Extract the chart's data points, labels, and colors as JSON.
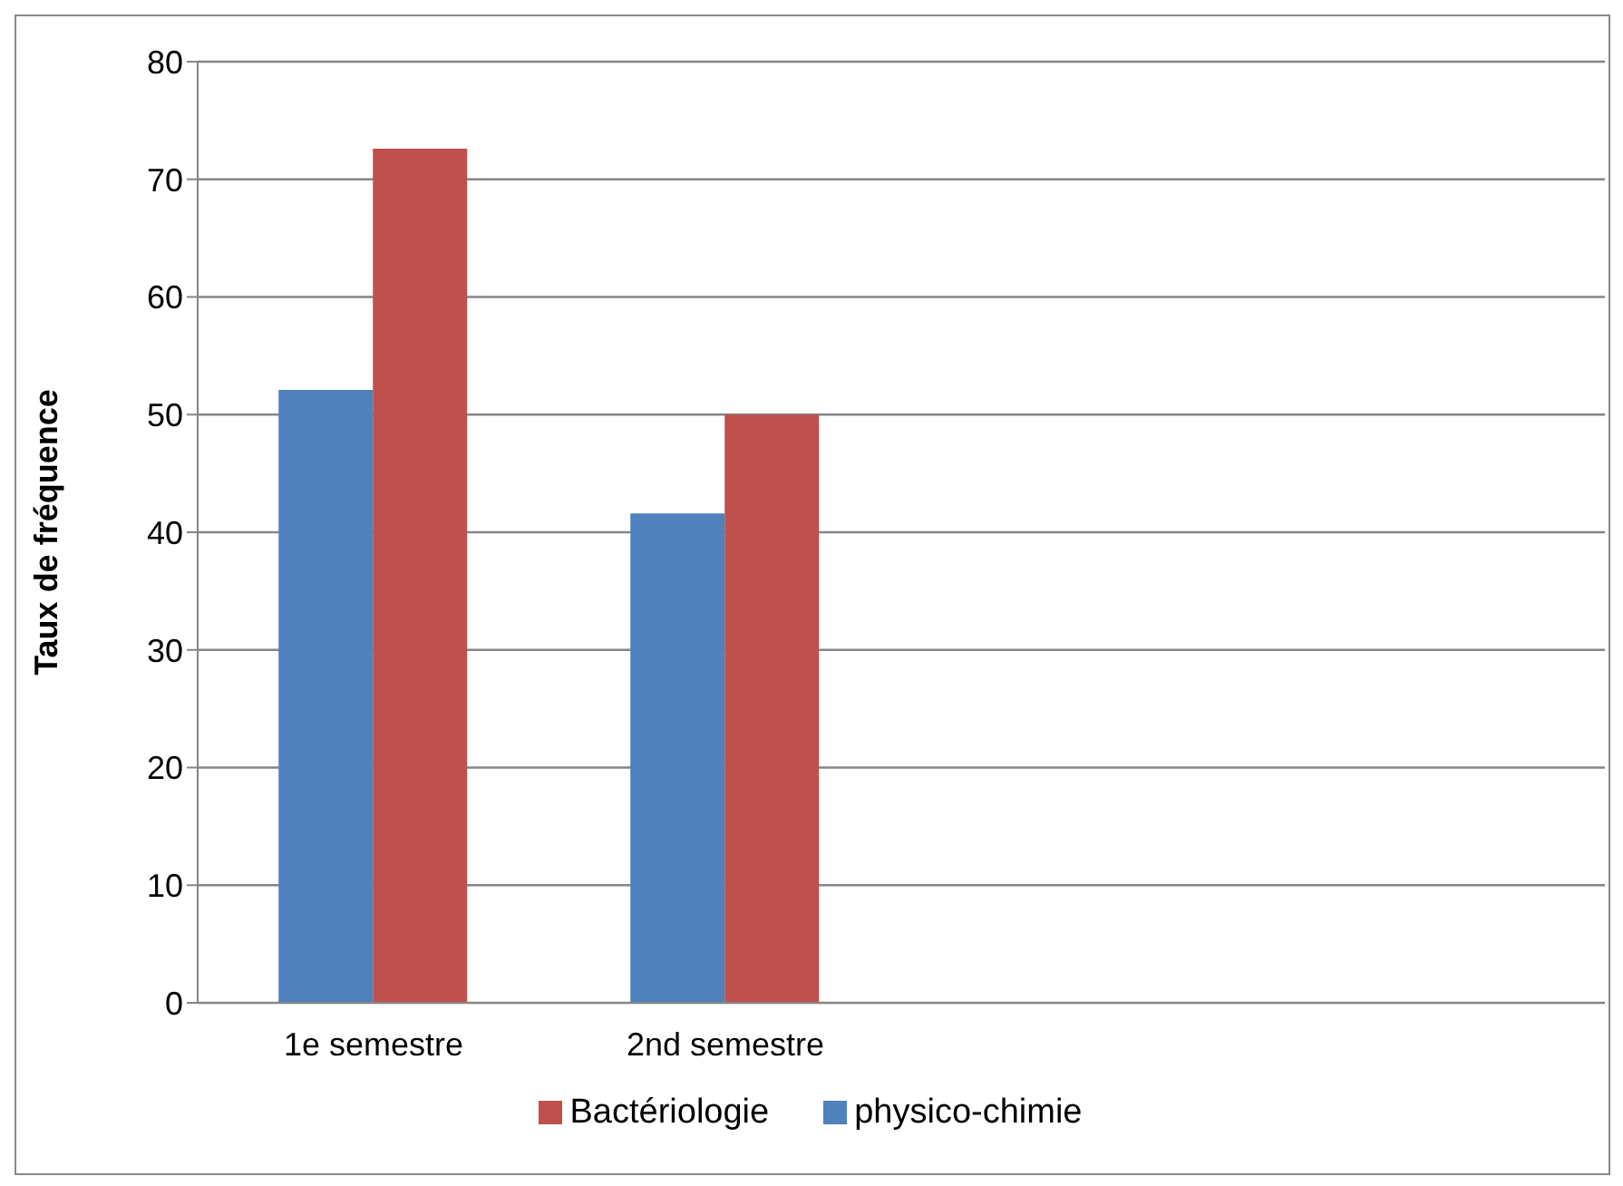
{
  "chart_data": {
    "type": "bar",
    "ylabel": "Taux de fréquence",
    "categories": [
      "1e semestre",
      "2nd semestre",
      null,
      null
    ],
    "series": [
      {
        "name": "physico-chimie",
        "color": "#4f81bd",
        "values": [
          52.1,
          41.6,
          null,
          null
        ]
      },
      {
        "name": "Bactériologie",
        "color": "#c0504d",
        "values": [
          72.6,
          50,
          null,
          null
        ]
      }
    ],
    "ylim": [
      0,
      80
    ],
    "yticks": [
      0,
      10,
      20,
      30,
      40,
      50,
      60,
      70,
      80
    ],
    "grid": "y",
    "legend": "bottom"
  }
}
